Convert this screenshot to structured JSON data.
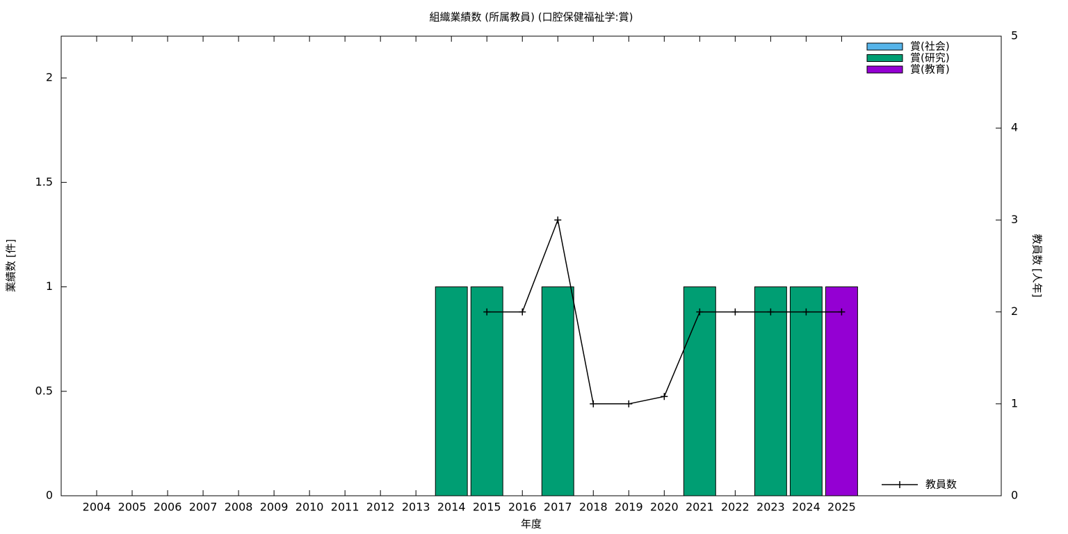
{
  "chart_data": {
    "type": "bar",
    "title": "組織業績数 (所属教員) (口腔保健福祉学:賞)",
    "x_label": "年度",
    "y_label": "業績数 [件]",
    "y2_label": "教員数 [人年]",
    "categories": [
      "2004",
      "2005",
      "2006",
      "2007",
      "2008",
      "2009",
      "2010",
      "2011",
      "2012",
      "2013",
      "2014",
      "2015",
      "2016",
      "2017",
      "2018",
      "2019",
      "2020",
      "2021",
      "2022",
      "2023",
      "2024",
      "2025"
    ],
    "stacked": true,
    "series": [
      {
        "name": "賞(社会)",
        "color": "#56b4e9",
        "values": [
          0,
          0,
          0,
          0,
          0,
          0,
          0,
          0,
          0,
          0,
          0,
          0,
          0,
          0,
          0,
          0,
          0,
          0,
          0,
          0,
          0,
          0
        ]
      },
      {
        "name": "賞(研究)",
        "color": "#009e73",
        "values": [
          0,
          0,
          0,
          0,
          0,
          0,
          0,
          0,
          0,
          0,
          1,
          1,
          0,
          1,
          0,
          0,
          0,
          1,
          0,
          1,
          1,
          0
        ]
      },
      {
        "name": "賞(教育)",
        "color": "#9400d3",
        "values": [
          0,
          0,
          0,
          0,
          0,
          0,
          0,
          0,
          0,
          0,
          0,
          0,
          0,
          0,
          0,
          0,
          0,
          0,
          0,
          0,
          0,
          1
        ]
      },
      {
        "name": "教員数",
        "type": "line",
        "axis": "y2",
        "color": "#000000",
        "values": [
          null,
          null,
          null,
          null,
          null,
          null,
          null,
          null,
          null,
          null,
          null,
          2,
          2,
          3,
          1,
          1,
          1.08,
          2,
          2,
          2,
          2,
          2
        ]
      }
    ],
    "ylim": [
      0,
      2.2
    ],
    "yticks": [
      0,
      0.5,
      1,
      1.5,
      2
    ],
    "y2lim": [
      0,
      5
    ],
    "y2ticks": [
      0,
      1,
      2,
      3,
      4,
      5
    ],
    "legend": "upper right"
  }
}
